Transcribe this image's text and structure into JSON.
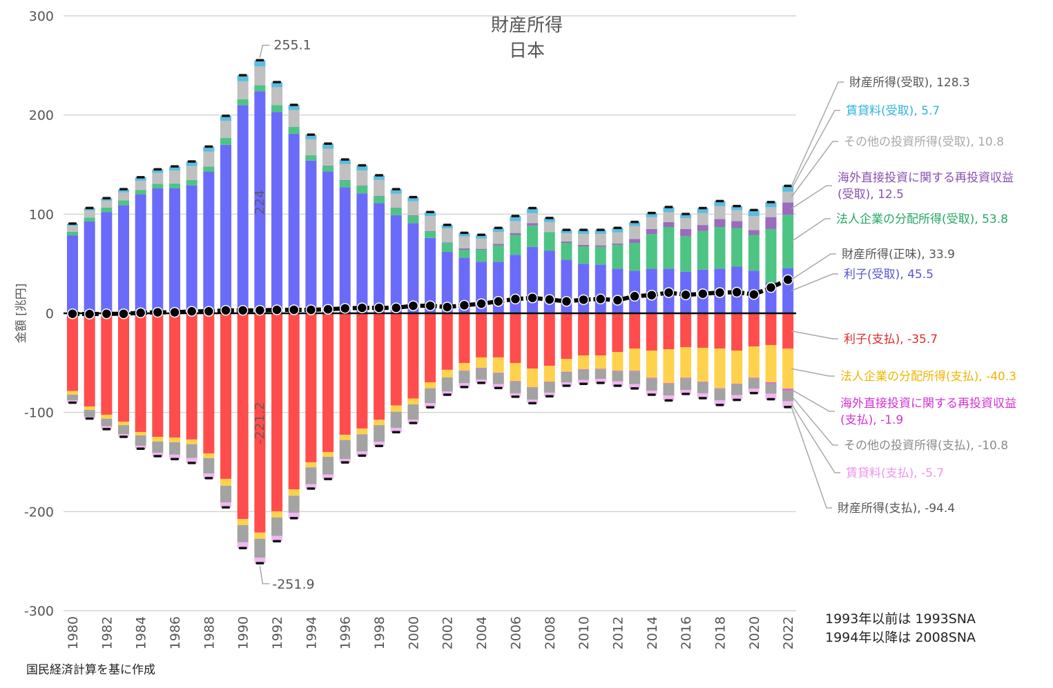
{
  "chart_data": {
    "type": "bar",
    "stacked": true,
    "title": "財産所得",
    "subtitle": "日本",
    "ylabel": "金額 [兆円]",
    "xlabel": "",
    "ylim": [
      -300,
      300
    ],
    "yticks": [
      300,
      200,
      100,
      0,
      -100,
      -200,
      -300
    ],
    "grid": true,
    "x": [
      1980,
      1981,
      1982,
      1983,
      1984,
      1985,
      1986,
      1987,
      1988,
      1989,
      1990,
      1991,
      1992,
      1993,
      1994,
      1995,
      1996,
      1997,
      1998,
      1999,
      2000,
      2001,
      2002,
      2003,
      2004,
      2005,
      2006,
      2007,
      2008,
      2009,
      2010,
      2011,
      2012,
      2013,
      2014,
      2015,
      2016,
      2017,
      2018,
      2019,
      2020,
      2021,
      2022
    ],
    "receipts": [
      {
        "name": "利子(受取)",
        "color": "#6b6bfa",
        "values": [
          78.6,
          92.6,
          102,
          109,
          120,
          126,
          126,
          129,
          143,
          170,
          210,
          224,
          203,
          181,
          154,
          143,
          127,
          121,
          111,
          99,
          91,
          76,
          62,
          56,
          52,
          52,
          59,
          67,
          63,
          54,
          50,
          49,
          45,
          43,
          45,
          45,
          42,
          44,
          45,
          47,
          43,
          31,
          45.5
        ]
      },
      {
        "name": "法人企業の分配所得(受取)",
        "color": "#4dc484",
        "values": [
          3.7,
          4,
          4.5,
          5,
          4.5,
          4.5,
          5,
          5.5,
          5,
          7,
          6,
          6,
          7,
          7,
          5.5,
          5.5,
          7,
          7.5,
          7,
          7,
          7.5,
          6.5,
          9,
          8,
          12,
          16.5,
          20,
          21.5,
          19,
          17,
          17.5,
          18,
          24,
          28,
          35,
          42,
          36,
          39,
          42,
          39,
          36,
          54,
          53.8
        ]
      },
      {
        "name": "海外直接投資に関する再投資収益(受取)",
        "color": "#9b6bbd",
        "values": [
          0,
          0,
          0,
          0,
          0,
          0,
          0,
          0,
          0,
          0,
          0,
          0,
          0,
          0,
          0,
          0.5,
          0.5,
          0.5,
          0.5,
          0.5,
          0.5,
          0.5,
          0.5,
          1.5,
          1,
          1.5,
          2,
          2.5,
          0,
          1.5,
          1.5,
          1.5,
          1.5,
          4,
          5,
          5,
          7,
          6,
          8,
          7,
          5,
          12,
          12.5
        ]
      },
      {
        "name": "その他の投資所得(受取)",
        "color": "#c0c0c0",
        "values": [
          6,
          7,
          7,
          8,
          9,
          11,
          13,
          14,
          15,
          17,
          18,
          19,
          18,
          17,
          16,
          17,
          16,
          15,
          16,
          14,
          14,
          15,
          14,
          12,
          10.5,
          12,
          12,
          10,
          10,
          8,
          11,
          11.5,
          11,
          13,
          12,
          10,
          11,
          12,
          13,
          11,
          14,
          10,
          10.8
        ]
      },
      {
        "name": "賃貸料(受取)",
        "color": "#5bbde0",
        "values": [
          2,
          2.5,
          2.5,
          3,
          3.5,
          3.5,
          4,
          4.5,
          5,
          5,
          6,
          6.1,
          5,
          5,
          4.5,
          5,
          4.5,
          5,
          4.5,
          4.5,
          4,
          4,
          3.5,
          3.5,
          3.5,
          4,
          5,
          5,
          4,
          3.5,
          4,
          4,
          4.5,
          4,
          4,
          5,
          4,
          5,
          5,
          4,
          6,
          5,
          5.7
        ]
      }
    ],
    "payments": [
      {
        "name": "利子(支払)",
        "color": "#ff4d4d",
        "values": [
          -78.4,
          -94,
          -102.3,
          -109.3,
          -119.7,
          -124.6,
          -125.3,
          -127.3,
          -141.3,
          -167,
          -207.4,
          -221.2,
          -199.8,
          -177.5,
          -150.3,
          -139.9,
          -122.5,
          -116.2,
          -107.4,
          -93,
          -86,
          -69.6,
          -57,
          -50.1,
          -44.5,
          -44.5,
          -50.1,
          -55.7,
          -52.9,
          -46,
          -42.5,
          -42.5,
          -39,
          -35.5,
          -37.6,
          -36.2,
          -34.1,
          -34.8,
          -35.5,
          -37.6,
          -33.4,
          -32,
          -35.7
        ]
      },
      {
        "name": "法人企業の分配所得(支払)",
        "color": "#ffd24d",
        "values": [
          -3.6,
          -3.5,
          -4,
          -3.5,
          -3.5,
          -4.7,
          -4.7,
          -4.7,
          -4.7,
          -7,
          -6.3,
          -6.2,
          -6.2,
          -6.5,
          -5.1,
          -4.9,
          -5.3,
          -5.8,
          -5.4,
          -6.3,
          -5.9,
          -6,
          -7.7,
          -7.7,
          -10.5,
          -15.4,
          -18.3,
          -18.8,
          -16,
          -13,
          -13.9,
          -13.5,
          -19,
          -22.5,
          -27.4,
          -34.3,
          -30.9,
          -34.3,
          -40.1,
          -33.4,
          -31.6,
          -37.6,
          -40.3
        ]
      },
      {
        "name": "海外直接投資に関する再投資収益(支払)",
        "color": "#e056e0",
        "values": [
          0,
          0,
          0,
          0,
          0,
          0,
          0,
          0,
          0,
          0,
          0,
          0,
          0,
          0,
          0,
          0,
          0,
          0,
          0,
          0,
          0,
          0,
          0,
          -0.5,
          -0.5,
          -0.5,
          -0.5,
          -0.5,
          -0.5,
          -0.5,
          -0.5,
          -0.5,
          -0.5,
          -0.5,
          -0.5,
          -0.5,
          -0.5,
          -0.5,
          -0.5,
          -0.5,
          -0.5,
          -1,
          -1.9
        ]
      },
      {
        "name": "その他の投資所得(支払)",
        "color": "#a3a3a3",
        "values": [
          -5.7,
          -6.9,
          -7.7,
          -9,
          -10.4,
          -11.3,
          -12.6,
          -14,
          -15.5,
          -16.7,
          -17.3,
          -19,
          -18.6,
          -17.2,
          -17,
          -17.8,
          -19.1,
          -17.4,
          -16.7,
          -16.2,
          -15.5,
          -14.9,
          -14.2,
          -12.2,
          -11.3,
          -11.1,
          -11.8,
          -12.2,
          -10.6,
          -10.3,
          -10.4,
          -9.6,
          -10.2,
          -13,
          -12.5,
          -12,
          -11.8,
          -11.1,
          -11.6,
          -11.1,
          -10.6,
          -10.6,
          -10.8
        ]
      },
      {
        "name": "賃貸料(支払)",
        "color": "#f2b6f2",
        "values": [
          -2.3,
          -1.6,
          -2.7,
          -2.6,
          -2.8,
          -3.3,
          -4.3,
          -4.8,
          -4.6,
          -4.9,
          -5.7,
          -5.5,
          -5.1,
          -5.3,
          -4.2,
          -4.4,
          -3.4,
          -4,
          -4.1,
          -4.2,
          -3.1,
          -4.2,
          -3.1,
          -3.7,
          -3.2,
          -3.7,
          -3.3,
          -3.3,
          -3.5,
          -3.1,
          -3.7,
          -3.9,
          -4.2,
          -4.1,
          -4,
          -4.7,
          -3.9,
          -4.7,
          -4.6,
          -4.6,
          -4.2,
          -5.3,
          -5.7
        ]
      }
    ],
    "net": {
      "name": "財産所得(正味)",
      "values": [
        -0.5,
        -0.8,
        -0.5,
        -0.5,
        0.5,
        1,
        1,
        2,
        2,
        3,
        3,
        3,
        3.5,
        3.5,
        3.5,
        4,
        5,
        5.5,
        5.5,
        5.5,
        7.6,
        7.6,
        6.3,
        8.1,
        9.7,
        12,
        14.4,
        15.5,
        13.9,
        12,
        13.7,
        14.4,
        13.2,
        17.2,
        18.3,
        20.9,
        18.6,
        19.7,
        20.9,
        21.3,
        19,
        26,
        33.9
      ]
    },
    "data_labels": {
      "max_total": "255.1",
      "min_total": "-251.9",
      "max_interest_receipts": "224",
      "min_interest_payments": "-221.2"
    },
    "annotations": [
      {
        "text": "財産所得(受取), 128.3",
        "color": "#555555",
        "target": "receipts_total"
      },
      {
        "text": "賃貸料(受取), 5.7",
        "color": "#2fb3dc",
        "target": "receipts.4"
      },
      {
        "text": "その他の投資所得(受取), 10.8",
        "color": "#a8a8a8",
        "target": "receipts.3"
      },
      {
        "text": "海外直接投資に関する再投資収益",
        "text2": "(受取), 12.5",
        "color": "#8a4fb0",
        "target": "receipts.2"
      },
      {
        "text": "法人企業の分配所得(受取), 53.8",
        "color": "#26a862",
        "target": "receipts.1"
      },
      {
        "text": "財産所得(正味), 33.9",
        "color": "#555555",
        "target": "net"
      },
      {
        "text": "利子(受取), 45.5",
        "color": "#5555d5",
        "target": "receipts.0"
      },
      {
        "text": "利子(支払), -35.7",
        "color": "#e02a2a",
        "target": "payments.0"
      },
      {
        "text": "法人企業の分配所得(支払), -40.3",
        "color": "#f0b400",
        "target": "payments.1"
      },
      {
        "text": "海外直接投資に関する再投資収益",
        "text2": "(支払), -1.9",
        "color": "#d431d4",
        "target": "payments.2"
      },
      {
        "text": "その他の投資所得(支払), -10.8",
        "color": "#8a8a8a",
        "target": "payments.3"
      },
      {
        "text": "賃貸料(支払), -5.7",
        "color": "#ec95ec",
        "target": "payments.4"
      },
      {
        "text": "財産所得(支払), -94.4",
        "color": "#555555",
        "target": "payments_total"
      }
    ]
  },
  "notes": {
    "line1": "1993年以前は 1993SNA",
    "line2": "1994年以降は 2008SNA"
  },
  "source": "国民経済計算を基に作成"
}
